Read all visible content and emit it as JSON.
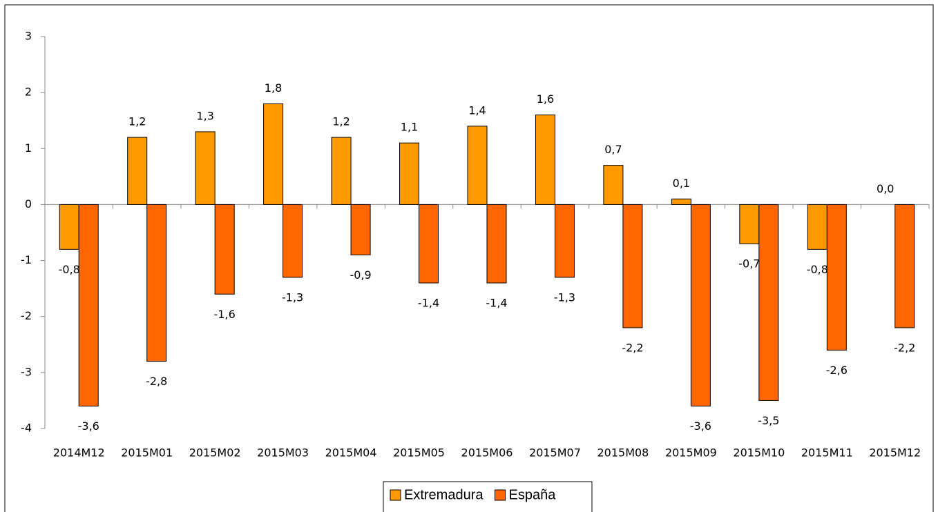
{
  "chart_data": {
    "type": "bar",
    "categories": [
      "2014M12",
      "2015M01",
      "2015M02",
      "2015M03",
      "2015M04",
      "2015M05",
      "2015M06",
      "2015M07",
      "2015M08",
      "2015M09",
      "2015M10",
      "2015M11",
      "2015M12"
    ],
    "series": [
      {
        "name": "Extremadura",
        "color": "#ff9900",
        "values": [
          -0.8,
          1.2,
          1.3,
          1.8,
          1.2,
          1.1,
          1.4,
          1.6,
          0.7,
          0.1,
          -0.7,
          -0.8,
          0.0
        ],
        "value_labels": [
          "-0,8",
          "1,2",
          "1,3",
          "1,8",
          "1,2",
          "1,1",
          "1,4",
          "1,6",
          "0,7",
          "0,1",
          "-0,7",
          "-0,8",
          "0,0"
        ]
      },
      {
        "name": "España",
        "color": "#ff6600",
        "values": [
          -3.6,
          -2.8,
          -1.6,
          -1.3,
          -0.9,
          -1.4,
          -1.4,
          -1.3,
          -2.2,
          -3.6,
          -3.5,
          -2.6,
          -2.2
        ],
        "value_labels": [
          "-3,6",
          "-2,8",
          "-1,6",
          "-1,3",
          "-0,9",
          "-1,4",
          "-1,4",
          "-1,3",
          "-2,2",
          "-3,6",
          "-3,5",
          "-2,6",
          "-2,2"
        ]
      }
    ],
    "ylim": [
      -4,
      3
    ],
    "yticks": [
      3,
      2,
      1,
      0,
      -1,
      -2,
      -3,
      -4
    ],
    "legend": "bottom"
  }
}
